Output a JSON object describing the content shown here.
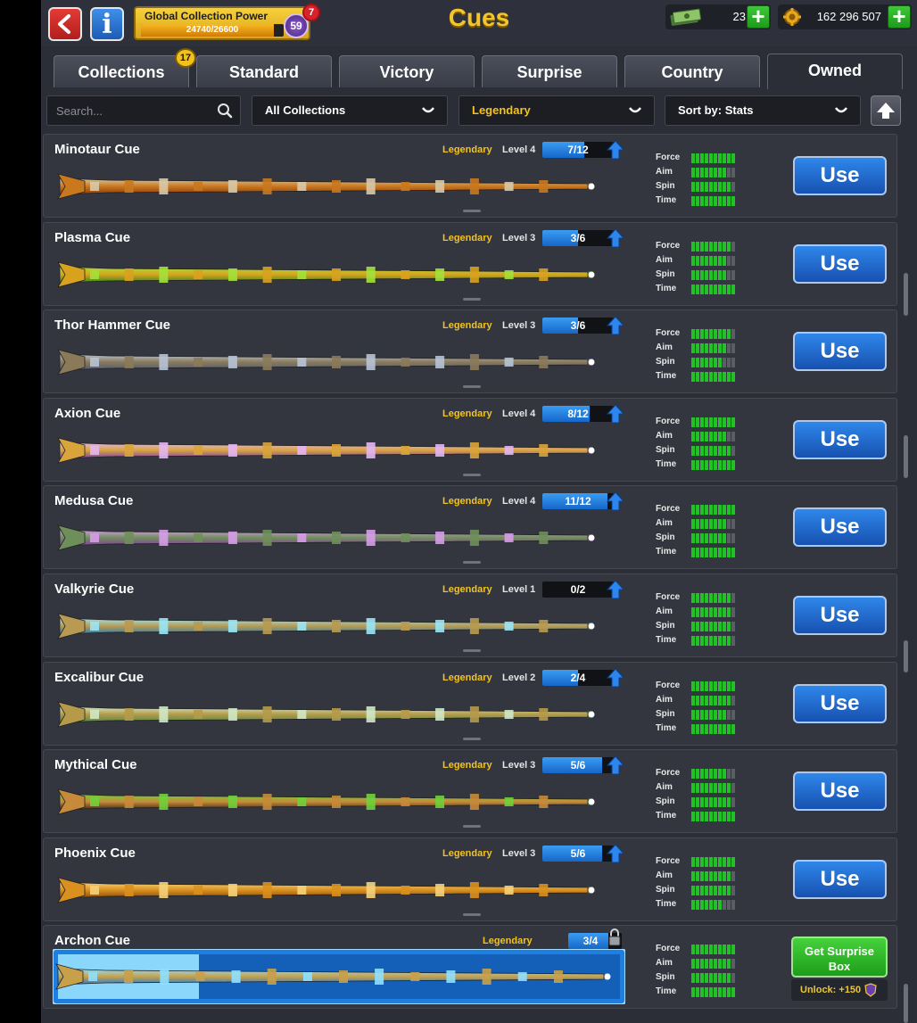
{
  "header": {
    "title": "Cues",
    "global_collection_power": {
      "label": "Global Collection Power",
      "value_text": "24740/26600",
      "current": 24740,
      "max": 26600,
      "level": "59",
      "notification_count": "7"
    },
    "cash": "23",
    "coins": "162 296 507",
    "icons": [
      "back-arrow-icon",
      "info-icon",
      "cash-icon",
      "coin-icon",
      "plus-icon"
    ]
  },
  "tabs": [
    {
      "label": "Collections",
      "badge": "17",
      "active": false
    },
    {
      "label": "Standard",
      "active": false
    },
    {
      "label": "Victory",
      "active": false
    },
    {
      "label": "Surprise",
      "active": false
    },
    {
      "label": "Country",
      "active": false
    },
    {
      "label": "Owned",
      "active": true
    }
  ],
  "filters": {
    "search_placeholder": "Search...",
    "collection": "All Collections",
    "rarity": "Legendary",
    "sort": "Sort by: Stats"
  },
  "stat_labels": [
    "Force",
    "Aim",
    "Spin",
    "Time"
  ],
  "cues": [
    {
      "name": "Minotaur Cue",
      "rarity": "Legendary",
      "level": "Level 4",
      "progress": "7/12",
      "progress_value": 7,
      "progress_max": 12,
      "stats": [
        10,
        8,
        9,
        10
      ],
      "action": "Use",
      "colors": [
        "#d8c9a8",
        "#c9781e",
        "#8a3b12"
      ],
      "glow": "#ff9a3a"
    },
    {
      "name": "Plasma Cue",
      "rarity": "Legendary",
      "level": "Level 3",
      "progress": "3/6",
      "progress_value": 3,
      "progress_max": 6,
      "stats": [
        9,
        8,
        8,
        10
      ],
      "action": "Use",
      "colors": [
        "#a4e13a",
        "#d8a21e",
        "#2c8a1f"
      ],
      "glow": "#5cff3a"
    },
    {
      "name": "Thor Hammer Cue",
      "rarity": "Legendary",
      "level": "Level 3",
      "progress": "3/6",
      "progress_value": 3,
      "progress_max": 6,
      "stats": [
        9,
        8,
        7,
        10
      ],
      "action": "Use",
      "colors": [
        "#b7c3d6",
        "#8a7a5a",
        "#4f5c7a"
      ],
      "glow": "#9a8cff"
    },
    {
      "name": "Axion Cue",
      "rarity": "Legendary",
      "level": "Level 4",
      "progress": "8/12",
      "progress_value": 8,
      "progress_max": 12,
      "stats": [
        10,
        8,
        9,
        10
      ],
      "action": "Use",
      "colors": [
        "#e3b6f2",
        "#d9a43a",
        "#7a3fb8"
      ],
      "glow": "#d35cff"
    },
    {
      "name": "Medusa Cue",
      "rarity": "Legendary",
      "level": "Level 4",
      "progress": "11/12",
      "progress_value": 11,
      "progress_max": 12,
      "stats": [
        10,
        8,
        8,
        10
      ],
      "action": "Use",
      "colors": [
        "#d79ce8",
        "#6f8f5a",
        "#8a3aa8"
      ],
      "glow": "#e25cff"
    },
    {
      "name": "Valkyrie Cue",
      "rarity": "Legendary",
      "level": "Level 1",
      "progress": "0/2",
      "progress_value": 0,
      "progress_max": 2,
      "stats": [
        9,
        9,
        9,
        9
      ],
      "action": "Use",
      "colors": [
        "#9ae6f5",
        "#b89a52",
        "#2f7fb0"
      ],
      "glow": "#3ad6ff"
    },
    {
      "name": "Excalibur Cue",
      "rarity": "Legendary",
      "level": "Level 2",
      "progress": "2/4",
      "progress_value": 2,
      "progress_max": 4,
      "stats": [
        10,
        9,
        8,
        10
      ],
      "action": "Use",
      "colors": [
        "#cfe8c6",
        "#b59a4a",
        "#4f8a4a"
      ],
      "glow": "#6aff5c"
    },
    {
      "name": "Mythical Cue",
      "rarity": "Legendary",
      "level": "Level 3",
      "progress": "5/6",
      "progress_value": 5,
      "progress_max": 6,
      "stats": [
        8,
        9,
        9,
        10
      ],
      "action": "Use",
      "colors": [
        "#6fd23a",
        "#c68a3a",
        "#3f2a1a"
      ],
      "glow": "#4cff3a"
    },
    {
      "name": "Phoenix Cue",
      "rarity": "Legendary",
      "level": "Level 3",
      "progress": "5/6",
      "progress_value": 5,
      "progress_max": 6,
      "stats": [
        10,
        9,
        9,
        7
      ],
      "action": "Use",
      "colors": [
        "#f5d27a",
        "#d9901e",
        "#8a4a12"
      ],
      "glow": "#ffc23a"
    },
    {
      "name": "Archon Cue",
      "rarity": "Legendary",
      "level": "",
      "progress": "3/4",
      "progress_value": 3,
      "progress_max": 4,
      "stats": [
        10,
        9,
        9,
        10
      ],
      "action": "Get Surprise Box",
      "unlock_text": "Unlock: +150",
      "locked": true,
      "colors": [
        "#8fe0ff",
        "#c8a04a",
        "#1f7fd8"
      ],
      "glow": "#3ab8ff"
    }
  ],
  "colors": {
    "accent_gold": "#f3c42b",
    "stat_on": "#22c226",
    "use_button": "#1f6bd0",
    "surprise_button": "#2fb42a"
  }
}
